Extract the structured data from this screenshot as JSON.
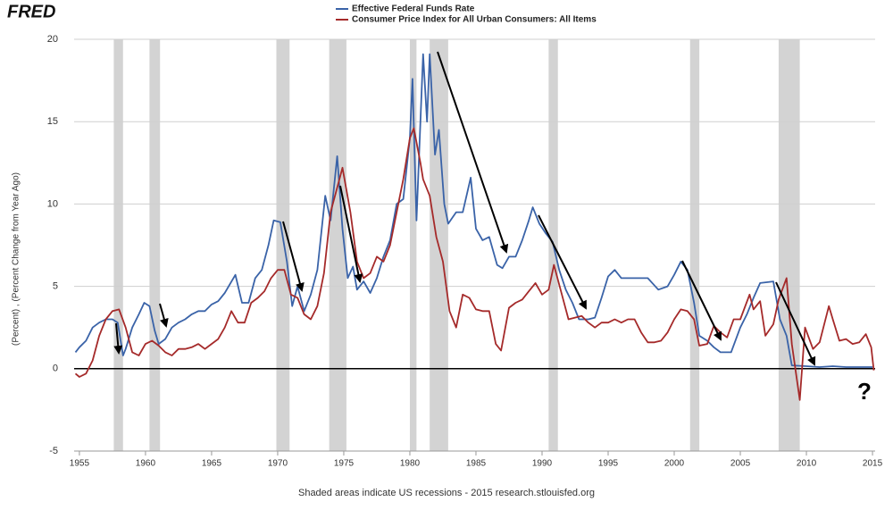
{
  "logo": "FRED",
  "chart_data": {
    "type": "line",
    "y_label": "(Percent) , (Percent Change from Year Ago)",
    "note": "Shaded areas indicate US recessions - 2015 research.stlouisfed.org",
    "annotation": "?",
    "xlim": [
      1954.6,
      2015.2
    ],
    "ylim": [
      -5,
      20
    ],
    "xticks": [
      1955,
      1960,
      1965,
      1970,
      1975,
      1980,
      1985,
      1990,
      1995,
      2000,
      2005,
      2010,
      2015
    ],
    "yticks": [
      -5,
      0,
      5,
      10,
      15,
      20
    ],
    "grid": true,
    "recession_color": "#d3d3d3",
    "recessions": [
      [
        1957.6,
        1958.3
      ],
      [
        1960.3,
        1961.1
      ],
      [
        1969.9,
        1970.9
      ],
      [
        1973.9,
        1975.2
      ],
      [
        1980.0,
        1980.5
      ],
      [
        1981.5,
        1982.9
      ],
      [
        1990.5,
        1991.2
      ],
      [
        2001.2,
        2001.9
      ],
      [
        2007.9,
        2009.5
      ]
    ],
    "series": [
      {
        "name": "Effective Federal Funds Rate",
        "color": "#3a63a8",
        "x": [
          1954.7,
          1955,
          1955.5,
          1956,
          1956.5,
          1957,
          1957.5,
          1957.9,
          1958.3,
          1958.5,
          1959,
          1959.5,
          1959.9,
          1960.3,
          1960.7,
          1961,
          1961.5,
          1962,
          1962.5,
          1963,
          1963.5,
          1964,
          1964.5,
          1965,
          1965.5,
          1966,
          1966.8,
          1967.3,
          1967.8,
          1968.3,
          1968.8,
          1969.3,
          1969.7,
          1970.2,
          1970.7,
          1971.1,
          1971.5,
          1972,
          1972.5,
          1973,
          1973.6,
          1974,
          1974.5,
          1974.9,
          1975.3,
          1975.7,
          1976,
          1976.5,
          1977,
          1977.5,
          1978,
          1978.5,
          1979,
          1979.5,
          1980,
          1980.2,
          1980.5,
          1980.8,
          1981,
          1981.3,
          1981.5,
          1981.9,
          1982.2,
          1982.6,
          1982.9,
          1983.5,
          1984,
          1984.6,
          1985,
          1985.5,
          1986,
          1986.6,
          1987,
          1987.5,
          1988,
          1988.5,
          1989,
          1989.3,
          1989.8,
          1990.3,
          1990.8,
          1991.3,
          1991.8,
          1992.3,
          1992.8,
          1993.5,
          1994,
          1994.5,
          1995,
          1995.5,
          1996,
          1997,
          1997.5,
          1998,
          1998.8,
          1999.5,
          2000,
          2000.5,
          2001,
          2001.5,
          2001.9,
          2002.5,
          2003,
          2003.5,
          2004.3,
          2005,
          2005.5,
          2006,
          2006.5,
          2007.5,
          2008,
          2008.5,
          2008.9,
          2010,
          2011,
          2012,
          2013,
          2014,
          2015
        ],
        "values": [
          1.0,
          1.3,
          1.7,
          2.5,
          2.8,
          3.0,
          3.0,
          2.8,
          0.8,
          1.2,
          2.5,
          3.3,
          4.0,
          3.8,
          2.3,
          1.5,
          1.8,
          2.5,
          2.8,
          3.0,
          3.3,
          3.5,
          3.5,
          3.9,
          4.1,
          4.6,
          5.7,
          4.0,
          4.0,
          5.5,
          6.0,
          7.5,
          9.0,
          8.9,
          6.5,
          3.8,
          5.0,
          3.5,
          4.5,
          6.0,
          10.5,
          9.0,
          12.9,
          8.5,
          5.5,
          6.2,
          4.8,
          5.3,
          4.6,
          5.5,
          6.8,
          7.8,
          10.0,
          10.3,
          14.0,
          17.6,
          9.0,
          15.0,
          19.1,
          15.0,
          19.1,
          13.0,
          14.5,
          10.0,
          8.8,
          9.5,
          9.5,
          11.6,
          8.5,
          7.8,
          8.0,
          6.3,
          6.1,
          6.8,
          6.8,
          7.8,
          9.0,
          9.8,
          8.8,
          8.2,
          7.7,
          6.0,
          4.8,
          4.0,
          3.0,
          3.0,
          3.1,
          4.3,
          5.6,
          6.0,
          5.5,
          5.5,
          5.5,
          5.5,
          4.8,
          5.0,
          5.7,
          6.5,
          6.0,
          4.0,
          2.0,
          1.7,
          1.3,
          1.0,
          1.0,
          2.5,
          3.3,
          4.3,
          5.2,
          5.3,
          3.0,
          2.0,
          0.2,
          0.15,
          0.1,
          0.15,
          0.1,
          0.1,
          0.1
        ]
      },
      {
        "name": "Consumer Price Index for All Urban Consumers: All Items",
        "color": "#a52a2a",
        "x": [
          1954.7,
          1955,
          1955.5,
          1956,
          1956.5,
          1957,
          1957.5,
          1958,
          1958.5,
          1959,
          1959.5,
          1960,
          1960.5,
          1961,
          1961.5,
          1962,
          1962.5,
          1963,
          1963.5,
          1964,
          1964.5,
          1965,
          1965.5,
          1966,
          1966.5,
          1967,
          1967.5,
          1968,
          1968.5,
          1969,
          1969.5,
          1970,
          1970.5,
          1971,
          1971.5,
          1972,
          1972.5,
          1973,
          1973.5,
          1974,
          1974.5,
          1974.9,
          1975.5,
          1976,
          1976.5,
          1977,
          1977.5,
          1978,
          1978.5,
          1979,
          1979.5,
          1980,
          1980.3,
          1980.8,
          1981,
          1981.5,
          1982,
          1982.5,
          1983,
          1983.5,
          1984,
          1984.5,
          1985,
          1985.5,
          1986,
          1986.5,
          1986.9,
          1987.5,
          1988,
          1988.5,
          1989,
          1989.5,
          1990,
          1990.5,
          1990.9,
          1991.5,
          1992,
          1992.5,
          1993,
          1993.5,
          1994,
          1994.5,
          1995,
          1995.5,
          1996,
          1996.5,
          1997,
          1997.5,
          1998,
          1998.5,
          1999,
          1999.5,
          2000,
          2000.5,
          2001,
          2001.5,
          2001.9,
          2002.5,
          2003,
          2003.5,
          2004,
          2004.5,
          2005,
          2005.7,
          2006,
          2006.5,
          2006.9,
          2007.5,
          2007.9,
          2008.5,
          2008.9,
          2009.5,
          2009.9,
          2010.5,
          2011,
          2011.7,
          2012,
          2012.5,
          2013,
          2013.5,
          2014,
          2014.5,
          2014.9,
          2015.1
        ],
        "values": [
          -0.3,
          -0.5,
          -0.3,
          0.5,
          2.0,
          3.0,
          3.5,
          3.6,
          2.5,
          1.0,
          0.8,
          1.5,
          1.7,
          1.4,
          1.0,
          0.8,
          1.2,
          1.2,
          1.3,
          1.5,
          1.2,
          1.5,
          1.8,
          2.5,
          3.5,
          2.8,
          2.8,
          4.0,
          4.3,
          4.7,
          5.5,
          6.0,
          6.0,
          4.5,
          4.3,
          3.3,
          3.0,
          3.8,
          5.8,
          9.5,
          11.0,
          12.2,
          9.5,
          6.5,
          5.5,
          5.8,
          6.8,
          6.5,
          7.5,
          9.5,
          11.5,
          14.0,
          14.6,
          12.5,
          11.5,
          10.5,
          8.0,
          6.5,
          3.5,
          2.5,
          4.5,
          4.3,
          3.6,
          3.5,
          3.5,
          1.5,
          1.1,
          3.7,
          4.0,
          4.2,
          4.7,
          5.2,
          4.5,
          4.8,
          6.3,
          4.5,
          3.0,
          3.1,
          3.2,
          2.8,
          2.5,
          2.8,
          2.8,
          3.0,
          2.8,
          3.0,
          3.0,
          2.2,
          1.6,
          1.6,
          1.7,
          2.2,
          3.0,
          3.6,
          3.5,
          3.0,
          1.4,
          1.5,
          2.6,
          2.2,
          1.9,
          3.0,
          3.0,
          4.5,
          3.6,
          4.1,
          2.0,
          2.7,
          4.2,
          5.5,
          1.5,
          -1.9,
          2.5,
          1.2,
          1.6,
          3.8,
          3.0,
          1.7,
          1.8,
          1.5,
          1.6,
          2.1,
          1.3,
          -0.1
        ]
      }
    ]
  }
}
